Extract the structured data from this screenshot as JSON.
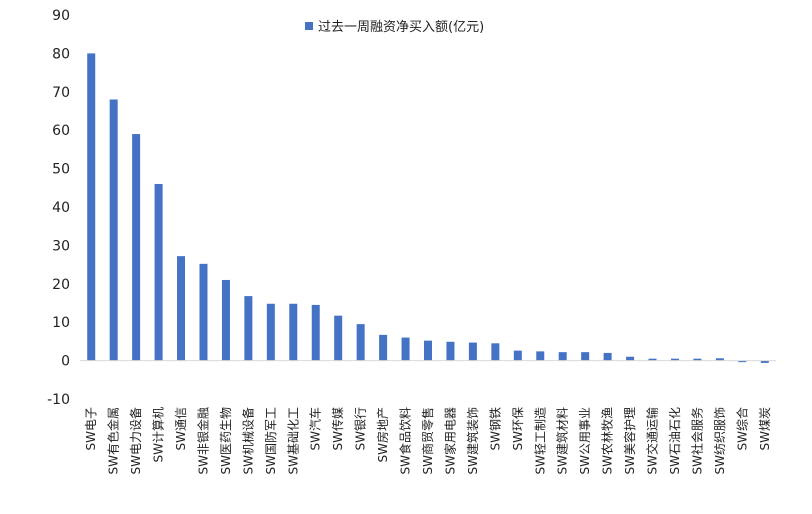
{
  "chart_data": {
    "type": "bar",
    "series": [
      {
        "name": "过去一周融资净买入额(亿元)",
        "color": "#4472C4",
        "values": [
          80,
          68,
          59,
          46,
          27.2,
          25.2,
          21,
          16.8,
          14.8,
          14.8,
          14.5,
          11.7,
          9.5,
          6.7,
          6,
          5.2,
          4.9,
          4.7,
          4.5,
          2.6,
          2.4,
          2.2,
          2.2,
          2,
          1,
          0.5,
          0.5,
          0.5,
          0.6,
          -0.4,
          -0.6
        ]
      }
    ],
    "categories": [
      "SW电子",
      "SW有色金属",
      "SW电力设备",
      "SW计算机",
      "SW通信",
      "SW非银金融",
      "SW医药生物",
      "SW机械设备",
      "SW国防军工",
      "SW基础化工",
      "SW汽车",
      "SW传媒",
      "SW银行",
      "SW房地产",
      "SW食品饮料",
      "SW商贸零售",
      "SW家用电器",
      "SW建筑装饰",
      "SW钢铁",
      "SW环保",
      "SW轻工制造",
      "SW建筑材料",
      "SW公用事业",
      "SW农林牧渔",
      "SW美容护理",
      "SW交通运输",
      "SW石油石化",
      "SW社会服务",
      "SW纺织服饰",
      "SW综合",
      "SW煤炭"
    ],
    "y_ticks": [
      "90",
      "80",
      "70",
      "60",
      "50",
      "40",
      "30",
      "20",
      "10",
      "0",
      "-10"
    ],
    "ylim": [
      -10,
      90
    ],
    "legend_position": "top-center",
    "grid": false
  }
}
